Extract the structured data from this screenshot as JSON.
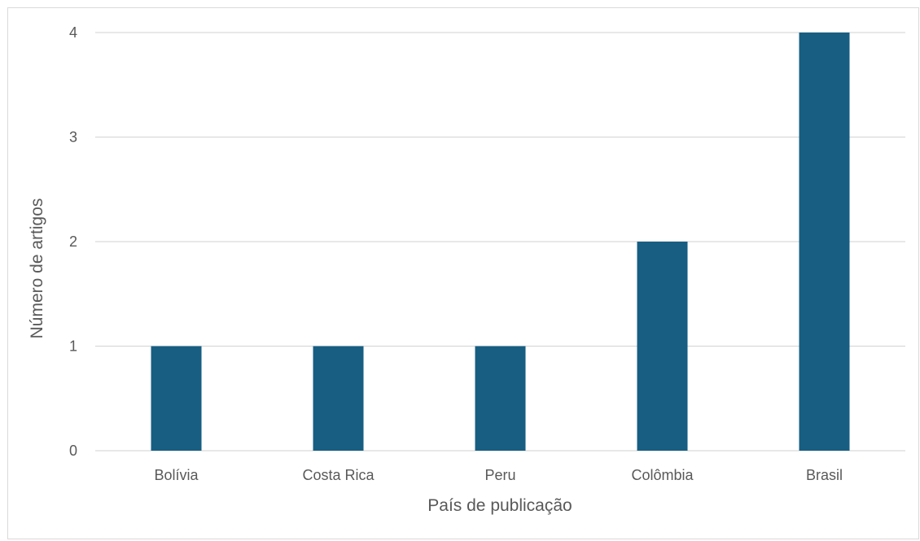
{
  "chart_data": {
    "type": "bar",
    "title": "",
    "xlabel": "País de publicação",
    "ylabel": "Número de artigos",
    "categories": [
      "Bolívia",
      "Costa Rica",
      "Peru",
      "Colômbia",
      "Brasil"
    ],
    "values": [
      1,
      1,
      1,
      2,
      4
    ],
    "ylim": [
      0,
      4
    ],
    "yticks": [
      "0",
      "1",
      "2",
      "3",
      "4"
    ],
    "grid": true,
    "legend": "none",
    "bar_color": "#175E82",
    "grid_color": "#D9D9D9"
  }
}
